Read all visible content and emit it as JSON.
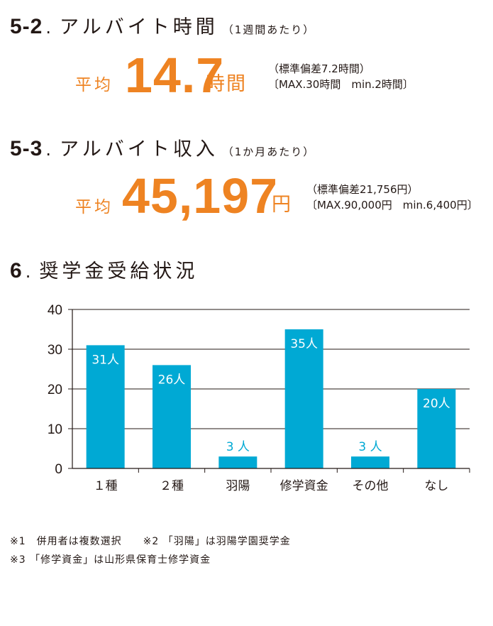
{
  "section52": {
    "number": "5-2",
    "dot": ".",
    "title": "アルバイト時間",
    "note": "（1週間あたり）",
    "avg_label": "平均",
    "value": "14.7",
    "unit": "時間",
    "stat1": "（標準偏差7.2時間）",
    "stat2": "〔MAX.30時間　min.2時間〕"
  },
  "section53": {
    "number": "5-3",
    "dot": ".",
    "title": "アルバイト収入",
    "note": "（1か月あたり）",
    "avg_label": "平均",
    "value": "45,197",
    "unit": "円",
    "stat1": "（標準偏差21,756円）",
    "stat2": "〔MAX.90,000円　min.6,400円〕"
  },
  "section6": {
    "number": "6",
    "dot": ".",
    "title": "奨学金受給状況"
  },
  "chart_data": {
    "type": "bar",
    "title": "",
    "xlabel": "",
    "ylabel": "",
    "ylim": [
      0,
      40
    ],
    "yticks": [
      0,
      10,
      20,
      30,
      40
    ],
    "grid": true,
    "bar_color": "#00a9d4",
    "categories": [
      "１種",
      "２種",
      "羽陽",
      "修学資金",
      "その他",
      "なし"
    ],
    "values": [
      31,
      26,
      3,
      35,
      3,
      20
    ],
    "data_labels": [
      "31人",
      "26人",
      "3 人",
      "35人",
      "3 人",
      "20人"
    ]
  },
  "footnotes": [
    "※1　併用者は複数選択　　※2 「羽陽」は羽陽学園奨学金",
    "※3 「修学資金」は山形県保育士修学資金"
  ]
}
